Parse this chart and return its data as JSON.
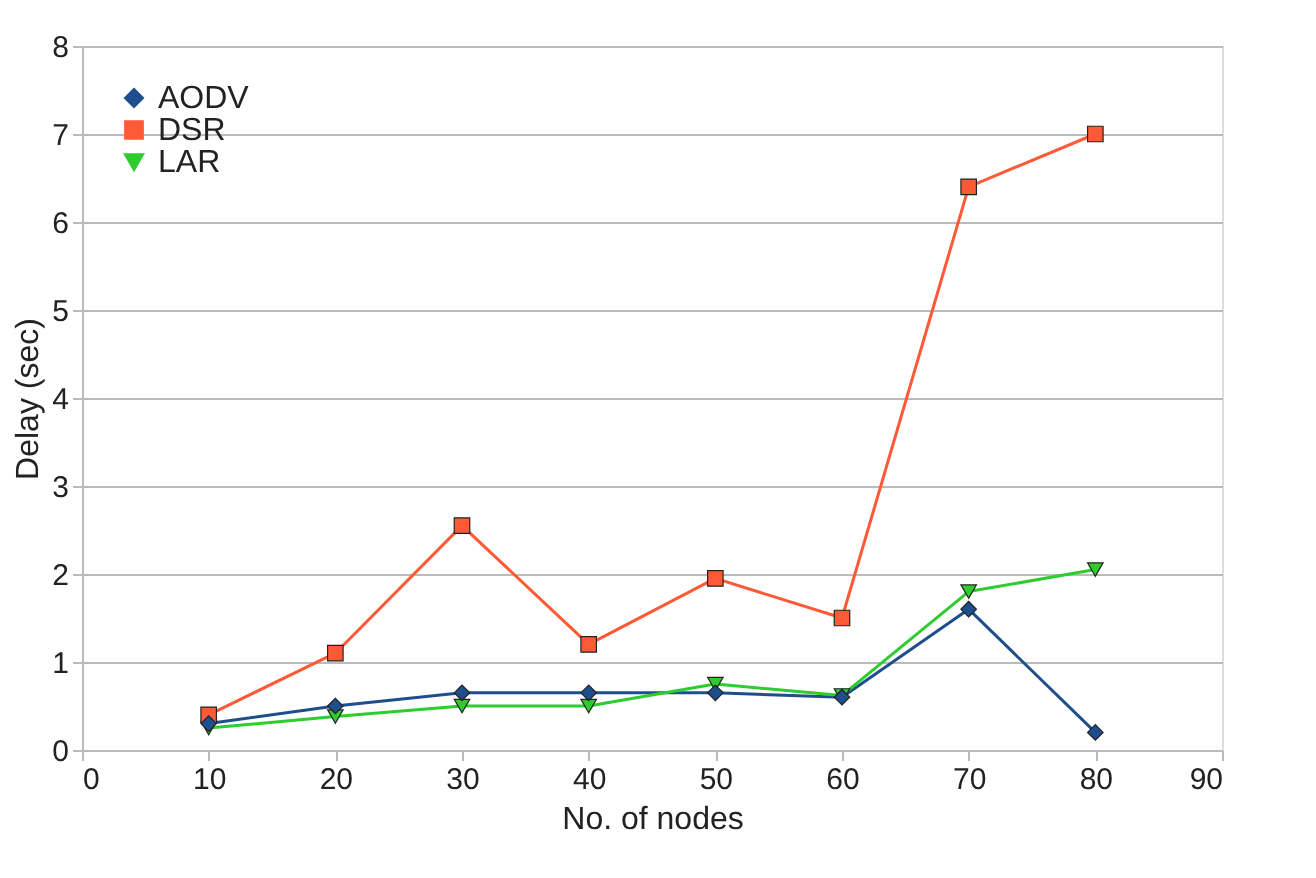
{
  "chart_data": {
    "type": "line",
    "xlabel": "No. of nodes",
    "ylabel": "Delay (sec)",
    "x": [
      10,
      20,
      30,
      40,
      50,
      60,
      70,
      80
    ],
    "series": [
      {
        "name": "AODV",
        "color": "#1f4e8c",
        "marker": "diamond",
        "values": [
          0.3,
          0.5,
          0.65,
          0.65,
          0.65,
          0.6,
          1.6,
          0.2
        ]
      },
      {
        "name": "DSR",
        "color": "#ff5a36",
        "marker": "square",
        "values": [
          0.4,
          1.1,
          2.55,
          1.2,
          1.95,
          1.5,
          6.4,
          7.0
        ]
      },
      {
        "name": "LAR",
        "color": "#2ecc2e",
        "marker": "triangle",
        "values": [
          0.25,
          0.38,
          0.5,
          0.5,
          0.75,
          0.62,
          1.8,
          2.05
        ]
      }
    ],
    "xlim": [
      0,
      90
    ],
    "xticks": [
      0,
      10,
      20,
      30,
      40,
      50,
      60,
      70,
      80,
      90
    ],
    "ylim": [
      0,
      8
    ],
    "yticks": [
      0,
      1,
      2,
      3,
      4,
      5,
      6,
      7,
      8
    ],
    "grid": "y",
    "legend": "top left",
    "line_style": "solid"
  }
}
